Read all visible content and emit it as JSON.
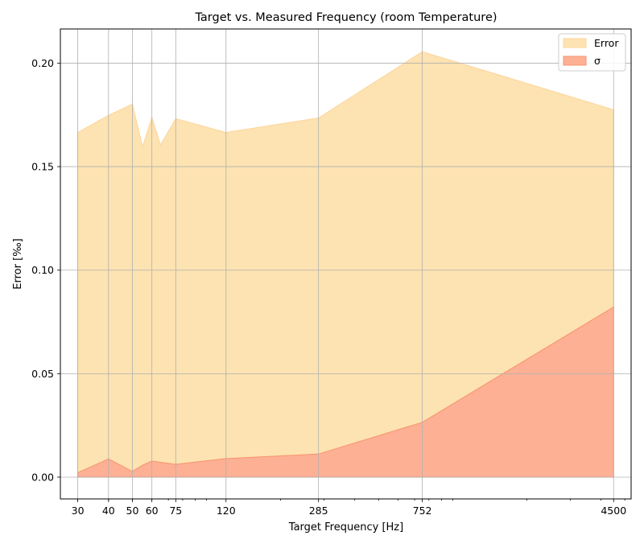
{
  "chart_data": {
    "type": "area",
    "title": "Target vs. Measured Frequency (room Temperature)",
    "xlabel": "Target Frequency [Hz]",
    "ylabel": "Error [‰]",
    "xscale": "log",
    "xlim": [
      25.5,
      5300
    ],
    "ylim": [
      -0.0105,
      0.2165
    ],
    "xticks": [
      30,
      40,
      50,
      60,
      75,
      120,
      285,
      752,
      4500
    ],
    "xtick_labels": [
      "30",
      "40",
      "50",
      "60",
      "75",
      "120",
      "285",
      "752",
      "4500"
    ],
    "yticks": [
      0.0,
      0.05,
      0.1,
      0.15,
      0.2
    ],
    "ytick_labels": [
      "0.00",
      "0.05",
      "0.10",
      "0.15",
      "0.20"
    ],
    "grid": true,
    "legend_position": "top-right",
    "x": [
      30,
      40,
      50,
      55,
      60,
      65,
      75,
      120,
      285,
      752,
      4500
    ],
    "series": [
      {
        "name": "Error",
        "color": "#fde3b1",
        "edge_color": "#fdd49a",
        "values": [
          0.1665,
          0.1748,
          0.1802,
          0.1595,
          0.1738,
          0.1605,
          0.1732,
          0.1665,
          0.1735,
          0.2055,
          0.1775
        ]
      },
      {
        "name": "σ",
        "color": "#fdb094",
        "edge_color": "#f8936f",
        "values": [
          0.0022,
          0.0088,
          0.0028,
          0.0058,
          0.0078,
          0.0072,
          0.0062,
          0.009,
          0.0112,
          0.0265,
          0.0822
        ]
      }
    ]
  }
}
